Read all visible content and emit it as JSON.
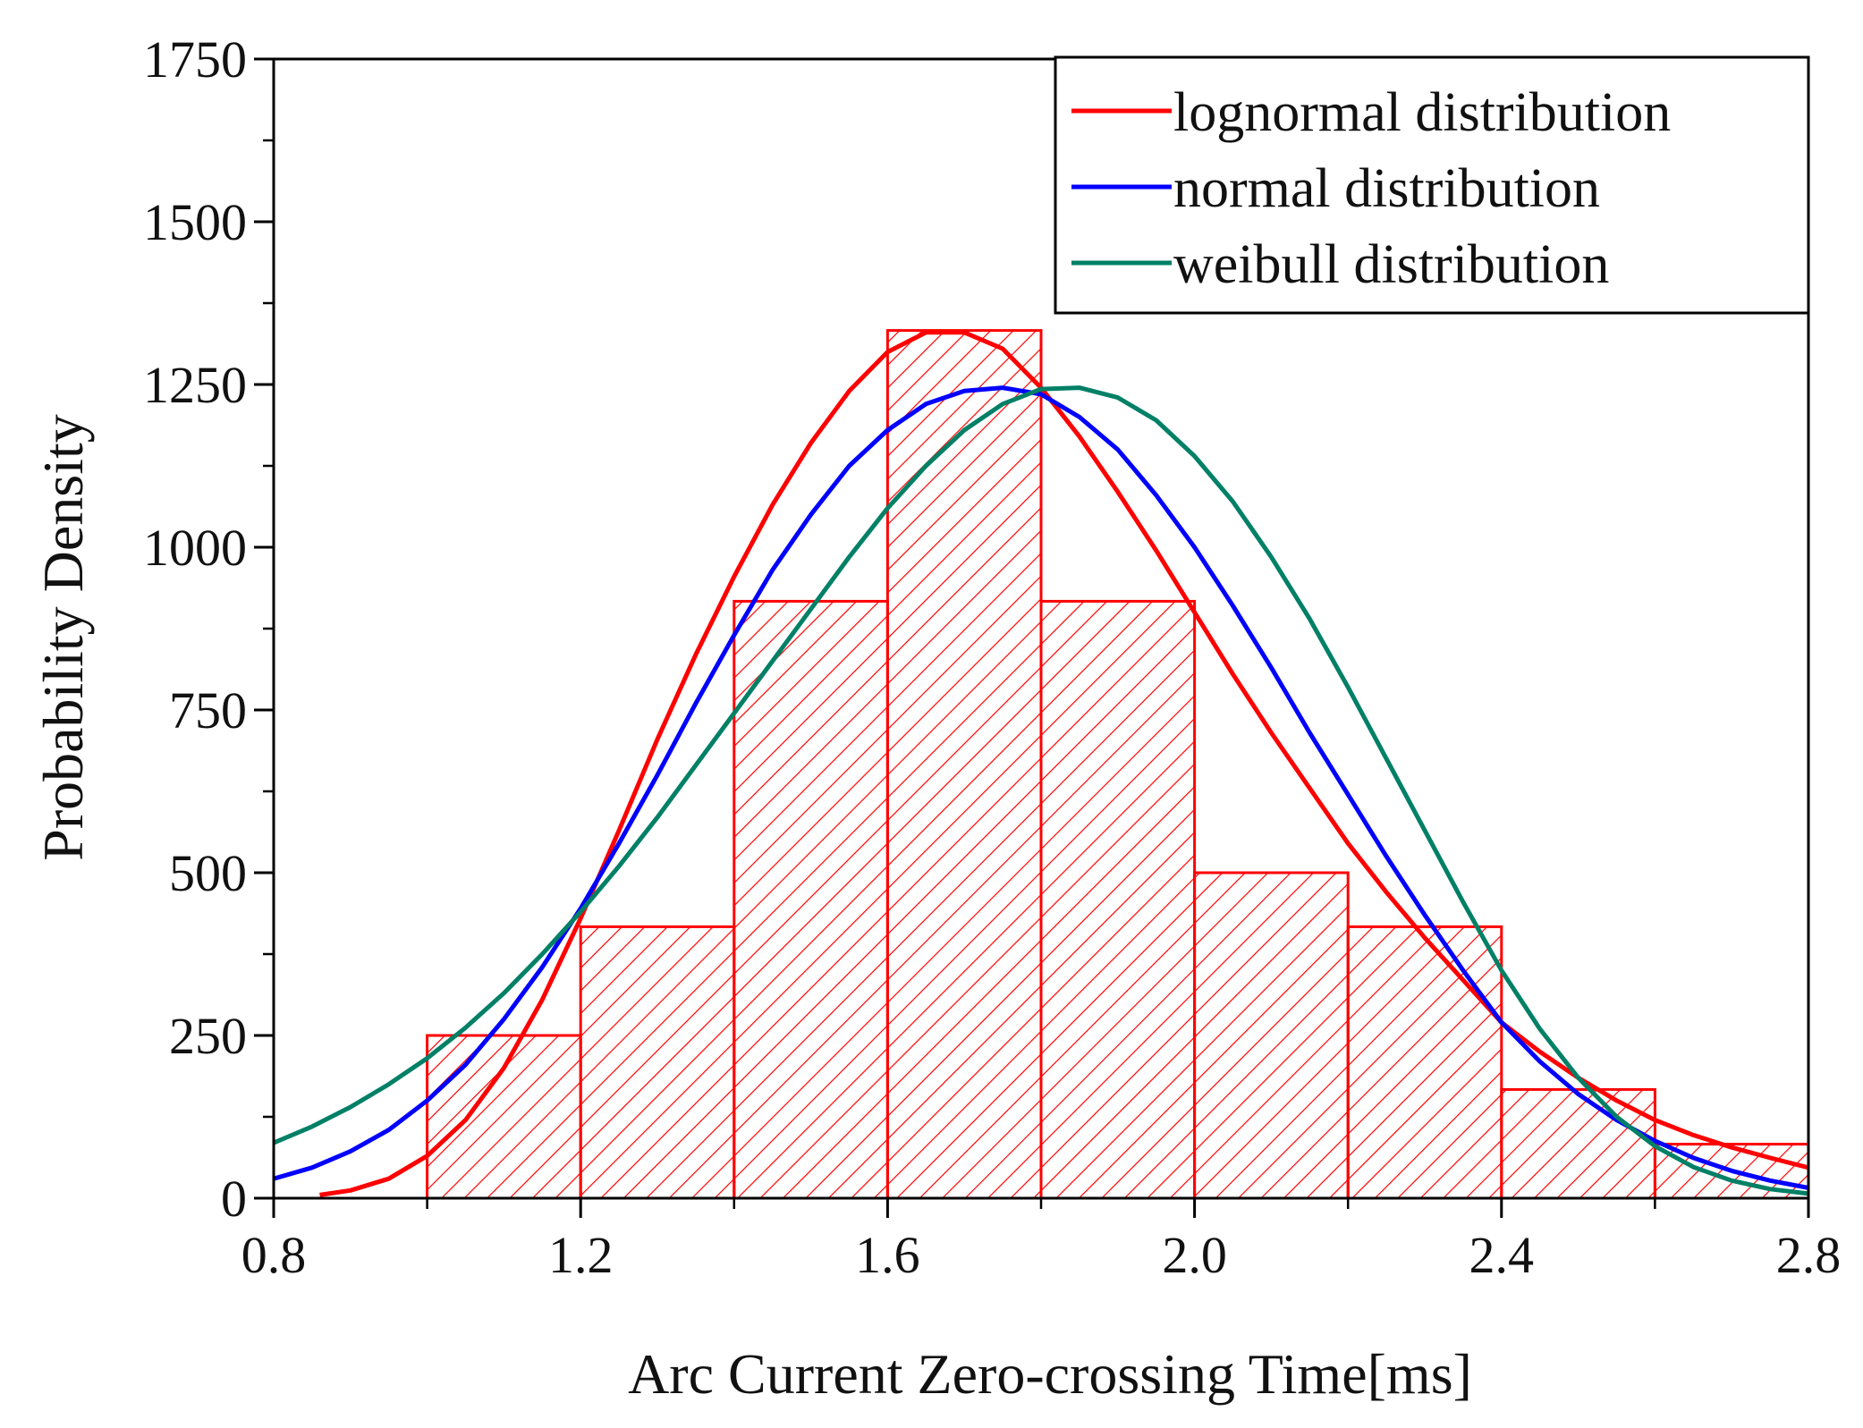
{
  "chart_data": {
    "type": "bar",
    "title": "",
    "xlabel": "Arc Current Zero-crossing Time[ms]",
    "ylabel": "Probability Density",
    "xlim": [
      0.8,
      2.8
    ],
    "ylim": [
      0,
      1750
    ],
    "x_ticks": [
      0.8,
      1.2,
      1.6,
      2.0,
      2.4,
      2.8
    ],
    "x_tick_labels": [
      "0.8",
      "1.2",
      "1.6",
      "2.0",
      "2.4",
      "2.8"
    ],
    "y_ticks": [
      0,
      250,
      500,
      750,
      1000,
      1250,
      1500,
      1750
    ],
    "y_tick_labels": [
      "0",
      "250",
      "500",
      "750",
      "1000",
      "1250",
      "1500",
      "1750"
    ],
    "grid": false,
    "legend_position": "top-right",
    "histogram": {
      "bin_edges": [
        1.0,
        1.2,
        1.4,
        1.6,
        1.8,
        2.0,
        2.2,
        2.4,
        2.6,
        2.8
      ],
      "values": [
        250,
        417,
        917,
        1333,
        917,
        500,
        417,
        167,
        83
      ],
      "color": "#ff0000"
    },
    "series": [
      {
        "name": "lognormal distribution",
        "color": "#ff0000",
        "points": [
          [
            0.86,
            5
          ],
          [
            0.9,
            12
          ],
          [
            0.95,
            30
          ],
          [
            1.0,
            65
          ],
          [
            1.05,
            120
          ],
          [
            1.1,
            200
          ],
          [
            1.15,
            305
          ],
          [
            1.2,
            430
          ],
          [
            1.25,
            565
          ],
          [
            1.3,
            705
          ],
          [
            1.35,
            835
          ],
          [
            1.4,
            955
          ],
          [
            1.45,
            1065
          ],
          [
            1.5,
            1160
          ],
          [
            1.55,
            1240
          ],
          [
            1.6,
            1300
          ],
          [
            1.65,
            1330
          ],
          [
            1.7,
            1330
          ],
          [
            1.75,
            1305
          ],
          [
            1.8,
            1245
          ],
          [
            1.85,
            1170
          ],
          [
            1.9,
            1085
          ],
          [
            1.95,
            995
          ],
          [
            2.0,
            900
          ],
          [
            2.05,
            805
          ],
          [
            2.1,
            715
          ],
          [
            2.15,
            630
          ],
          [
            2.2,
            545
          ],
          [
            2.25,
            470
          ],
          [
            2.3,
            400
          ],
          [
            2.35,
            335
          ],
          [
            2.4,
            270
          ],
          [
            2.45,
            225
          ],
          [
            2.5,
            185
          ],
          [
            2.55,
            150
          ],
          [
            2.6,
            120
          ],
          [
            2.65,
            97
          ],
          [
            2.7,
            78
          ],
          [
            2.75,
            62
          ],
          [
            2.8,
            47
          ]
        ]
      },
      {
        "name": "normal distribution",
        "color": "#0000ff",
        "points": [
          [
            0.8,
            30
          ],
          [
            0.85,
            47
          ],
          [
            0.9,
            72
          ],
          [
            0.95,
            105
          ],
          [
            1.0,
            150
          ],
          [
            1.05,
            205
          ],
          [
            1.1,
            275
          ],
          [
            1.15,
            355
          ],
          [
            1.2,
            445
          ],
          [
            1.25,
            545
          ],
          [
            1.3,
            650
          ],
          [
            1.35,
            760
          ],
          [
            1.4,
            865
          ],
          [
            1.45,
            965
          ],
          [
            1.5,
            1050
          ],
          [
            1.55,
            1125
          ],
          [
            1.6,
            1180
          ],
          [
            1.65,
            1220
          ],
          [
            1.7,
            1240
          ],
          [
            1.75,
            1245
          ],
          [
            1.8,
            1235
          ],
          [
            1.85,
            1200
          ],
          [
            1.9,
            1150
          ],
          [
            1.95,
            1080
          ],
          [
            2.0,
            1000
          ],
          [
            2.05,
            910
          ],
          [
            2.1,
            815
          ],
          [
            2.15,
            715
          ],
          [
            2.2,
            620
          ],
          [
            2.25,
            525
          ],
          [
            2.3,
            435
          ],
          [
            2.35,
            350
          ],
          [
            2.4,
            270
          ],
          [
            2.45,
            210
          ],
          [
            2.5,
            160
          ],
          [
            2.55,
            120
          ],
          [
            2.6,
            88
          ],
          [
            2.65,
            62
          ],
          [
            2.7,
            42
          ],
          [
            2.75,
            27
          ],
          [
            2.8,
            16
          ]
        ]
      },
      {
        "name": "weibull distribution",
        "color": "#008066",
        "points": [
          [
            0.8,
            85
          ],
          [
            0.85,
            110
          ],
          [
            0.9,
            140
          ],
          [
            0.95,
            175
          ],
          [
            1.0,
            215
          ],
          [
            1.05,
            262
          ],
          [
            1.1,
            315
          ],
          [
            1.15,
            375
          ],
          [
            1.2,
            440
          ],
          [
            1.25,
            510
          ],
          [
            1.3,
            585
          ],
          [
            1.35,
            665
          ],
          [
            1.4,
            745
          ],
          [
            1.45,
            825
          ],
          [
            1.5,
            905
          ],
          [
            1.55,
            985
          ],
          [
            1.6,
            1060
          ],
          [
            1.65,
            1125
          ],
          [
            1.7,
            1180
          ],
          [
            1.75,
            1220
          ],
          [
            1.8,
            1243
          ],
          [
            1.85,
            1245
          ],
          [
            1.9,
            1230
          ],
          [
            1.95,
            1195
          ],
          [
            2.0,
            1140
          ],
          [
            2.05,
            1070
          ],
          [
            2.1,
            985
          ],
          [
            2.15,
            890
          ],
          [
            2.2,
            785
          ],
          [
            2.25,
            675
          ],
          [
            2.3,
            565
          ],
          [
            2.35,
            455
          ],
          [
            2.4,
            350
          ],
          [
            2.45,
            260
          ],
          [
            2.5,
            185
          ],
          [
            2.55,
            125
          ],
          [
            2.6,
            80
          ],
          [
            2.65,
            48
          ],
          [
            2.7,
            27
          ],
          [
            2.75,
            14
          ],
          [
            2.8,
            7
          ]
        ]
      }
    ]
  }
}
